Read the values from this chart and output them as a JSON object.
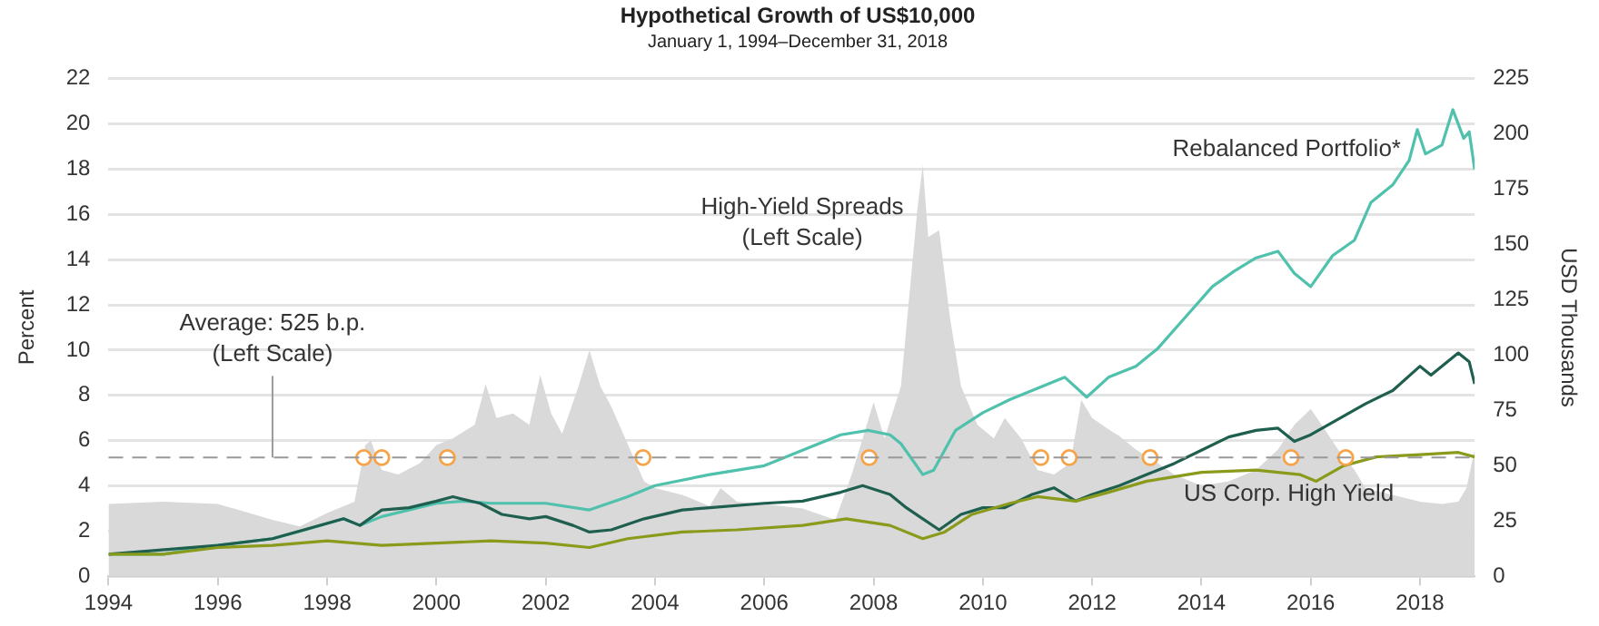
{
  "chart_data": {
    "type": "line",
    "title": "Hypothetical Growth of US$10,000",
    "subtitle": "January 1, 1994–December 31, 2018",
    "ylabel": "Percent",
    "y2label": "USD Thousands",
    "xlim": [
      1994,
      2019
    ],
    "xticks": [
      1994,
      1996,
      1998,
      2000,
      2002,
      2004,
      2006,
      2008,
      2010,
      2012,
      2014,
      2016,
      2018
    ],
    "ylim": [
      0,
      22
    ],
    "yticks": [
      0,
      2,
      4,
      6,
      8,
      10,
      12,
      14,
      16,
      18,
      20,
      22
    ],
    "y2lim": [
      0,
      225
    ],
    "y2ticks": [
      0,
      25,
      50,
      75,
      100,
      125,
      150,
      175,
      200,
      225
    ],
    "grid": "y",
    "legend": false,
    "line_style": "solid",
    "ref_lines": [
      {
        "axis": "y",
        "value": 5.25,
        "label": "Average: 525 b.p. (Left Scale)",
        "color": "#999999",
        "line_style": "dashed"
      }
    ],
    "series": [
      {
        "type": "area",
        "name": "High-Yield Spreads (Left Scale)",
        "color": "#d9d9d9",
        "marker": "none",
        "x": [
          1994,
          1995,
          1996,
          1997,
          1997.5,
          1998,
          1998.5,
          1998.7,
          1998.8,
          1999,
          1999.3,
          1999.7,
          2000,
          2000.3,
          2000.7,
          2000.9,
          2001.1,
          2001.4,
          2001.7,
          2001.9,
          2002.1,
          2002.3,
          2002.6,
          2002.8,
          2003,
          2003.2,
          2003.4,
          2003.6,
          2003.8,
          2004,
          2004.5,
          2005,
          2005.2,
          2005.5,
          2006,
          2006.7,
          2007.3,
          2007.6,
          2007.8,
          2008,
          2008.2,
          2008.5,
          2008.8,
          2008.9,
          2009,
          2009.2,
          2009.4,
          2009.6,
          2009.9,
          2010.2,
          2010.4,
          2010.7,
          2011,
          2011.3,
          2011.6,
          2011.8,
          2012,
          2012.3,
          2012.5,
          2012.8,
          2013.2,
          2013.5,
          2014,
          2014.5,
          2015,
          2015.4,
          2015.7,
          2016,
          2016.2,
          2016.5,
          2016.8,
          2017,
          2017.5,
          2018,
          2018.4,
          2018.7,
          2018.85,
          2019
        ],
        "values": [
          3.2,
          3.3,
          3.2,
          2.5,
          2.2,
          2.8,
          3.3,
          5.8,
          6,
          4.7,
          4.5,
          5,
          5.8,
          6.1,
          6.7,
          8.5,
          7,
          7.2,
          6.7,
          8.9,
          7.2,
          6.3,
          8.4,
          10,
          8.4,
          7.5,
          6.4,
          5.3,
          4.2,
          3.9,
          3.6,
          3.1,
          3.9,
          3.3,
          3.2,
          3,
          2.5,
          4.5,
          6.1,
          7.7,
          6.1,
          8.4,
          16.2,
          18.2,
          15,
          15.3,
          11.4,
          8.4,
          6.7,
          6.1,
          7,
          6.1,
          4.7,
          4.5,
          5,
          7.8,
          7,
          6.5,
          6.2,
          5.6,
          5,
          4.5,
          4,
          4.2,
          4.7,
          5.6,
          6.7,
          7.4,
          6.7,
          5.6,
          4.7,
          3.9,
          3.6,
          3.3,
          3.2,
          3.3,
          3.9,
          5.6
        ]
      },
      {
        "type": "line",
        "axis": "y2",
        "name": "Rebalanced Portfolio*",
        "color": "#4fc1ac",
        "marker": "none",
        "x": [
          1994,
          1995,
          1996,
          1997,
          1997.6,
          1998.3,
          1998.6,
          1999,
          2000,
          2000.5,
          2001,
          2002,
          2002.8,
          2003.5,
          2004,
          2005,
          2006,
          2006.7,
          2007.4,
          2007.9,
          2008.3,
          2008.5,
          2008.9,
          2009.1,
          2009.5,
          2010,
          2010.5,
          2011,
          2011.5,
          2011.9,
          2012.3,
          2012.8,
          2013.2,
          2013.7,
          2014.2,
          2014.6,
          2015,
          2015.4,
          2015.7,
          2016,
          2016.4,
          2016.8,
          2017.1,
          2017.5,
          2017.8,
          2017.95,
          2018.1,
          2018.4,
          2018.6,
          2018.8,
          2018.9,
          2019
        ],
        "values": [
          10,
          10,
          14,
          17,
          21,
          26,
          23,
          27,
          33,
          34,
          33,
          33,
          30,
          36,
          41,
          46,
          50,
          57,
          64,
          66,
          64,
          60,
          46,
          48,
          66,
          74,
          80,
          85,
          90,
          81,
          90,
          95,
          103,
          117,
          131,
          138,
          144,
          147,
          137,
          131,
          145,
          152,
          169,
          177,
          188,
          202,
          191,
          195,
          211,
          198,
          201,
          184
        ]
      },
      {
        "type": "line",
        "axis": "y2",
        "color": "#1f5f4f",
        "marker": "none",
        "x": [
          1994,
          1996,
          1997,
          1998.3,
          1998.6,
          1999,
          1999.5,
          2000,
          2000.3,
          2000.8,
          2001.2,
          2001.7,
          2002,
          2002.5,
          2002.8,
          2003.2,
          2003.8,
          2004.5,
          2005,
          2006,
          2006.7,
          2007.4,
          2007.8,
          2008.3,
          2008.6,
          2008.9,
          2009.2,
          2009.6,
          2010,
          2010.4,
          2010.9,
          2011.3,
          2011.7,
          2012,
          2012.5,
          2013,
          2013.5,
          2014,
          2014.5,
          2015,
          2015.4,
          2015.7,
          2016,
          2016.5,
          2017,
          2017.5,
          2018,
          2018.2,
          2018.7,
          2018.9,
          2019
        ],
        "values": [
          10,
          14,
          17,
          26,
          23,
          30,
          31,
          34,
          36,
          33,
          28,
          26,
          27,
          23,
          20,
          21,
          26,
          30,
          31,
          33,
          34,
          38,
          41,
          37,
          31,
          26,
          21,
          28,
          31,
          31,
          37,
          40,
          34,
          37,
          41,
          46,
          51,
          57,
          63,
          66,
          67,
          61,
          64,
          71,
          78,
          84,
          95,
          91,
          101,
          97,
          87
        ]
      },
      {
        "type": "line",
        "axis": "y2",
        "name": "US Corp. High Yield",
        "color": "#8a9a1a",
        "marker": "none",
        "x": [
          1994,
          1995,
          1996,
          1997,
          1998,
          1999,
          2000,
          2001,
          2002,
          2002.8,
          2003.5,
          2004.5,
          2005.5,
          2006.7,
          2007.5,
          2008.3,
          2008.9,
          2009.3,
          2009.8,
          2010.5,
          2011,
          2011.7,
          2012.3,
          2013,
          2014,
          2015,
          2015.8,
          2016.1,
          2016.6,
          2017.2,
          2018,
          2018.7,
          2019
        ],
        "values": [
          10,
          10,
          13,
          14,
          16,
          14,
          15,
          16,
          15,
          13,
          17,
          20,
          21,
          23,
          26,
          23,
          17,
          20,
          28,
          33,
          36,
          34,
          38,
          43,
          47,
          48,
          46,
          43,
          50,
          54,
          55,
          56,
          54
        ]
      },
      {
        "type": "scatter",
        "color": "#f7a34a",
        "marker": "circle",
        "x": [
          1998.67,
          1999,
          2000.2,
          2003.78,
          2007.92,
          2011.06,
          2011.58,
          2013.06,
          2015.64,
          2016.64
        ],
        "values": [
          5.25,
          5.25,
          5.25,
          5.25,
          5.25,
          5.25,
          5.25,
          5.25,
          5.25,
          5.25
        ]
      }
    ]
  }
}
